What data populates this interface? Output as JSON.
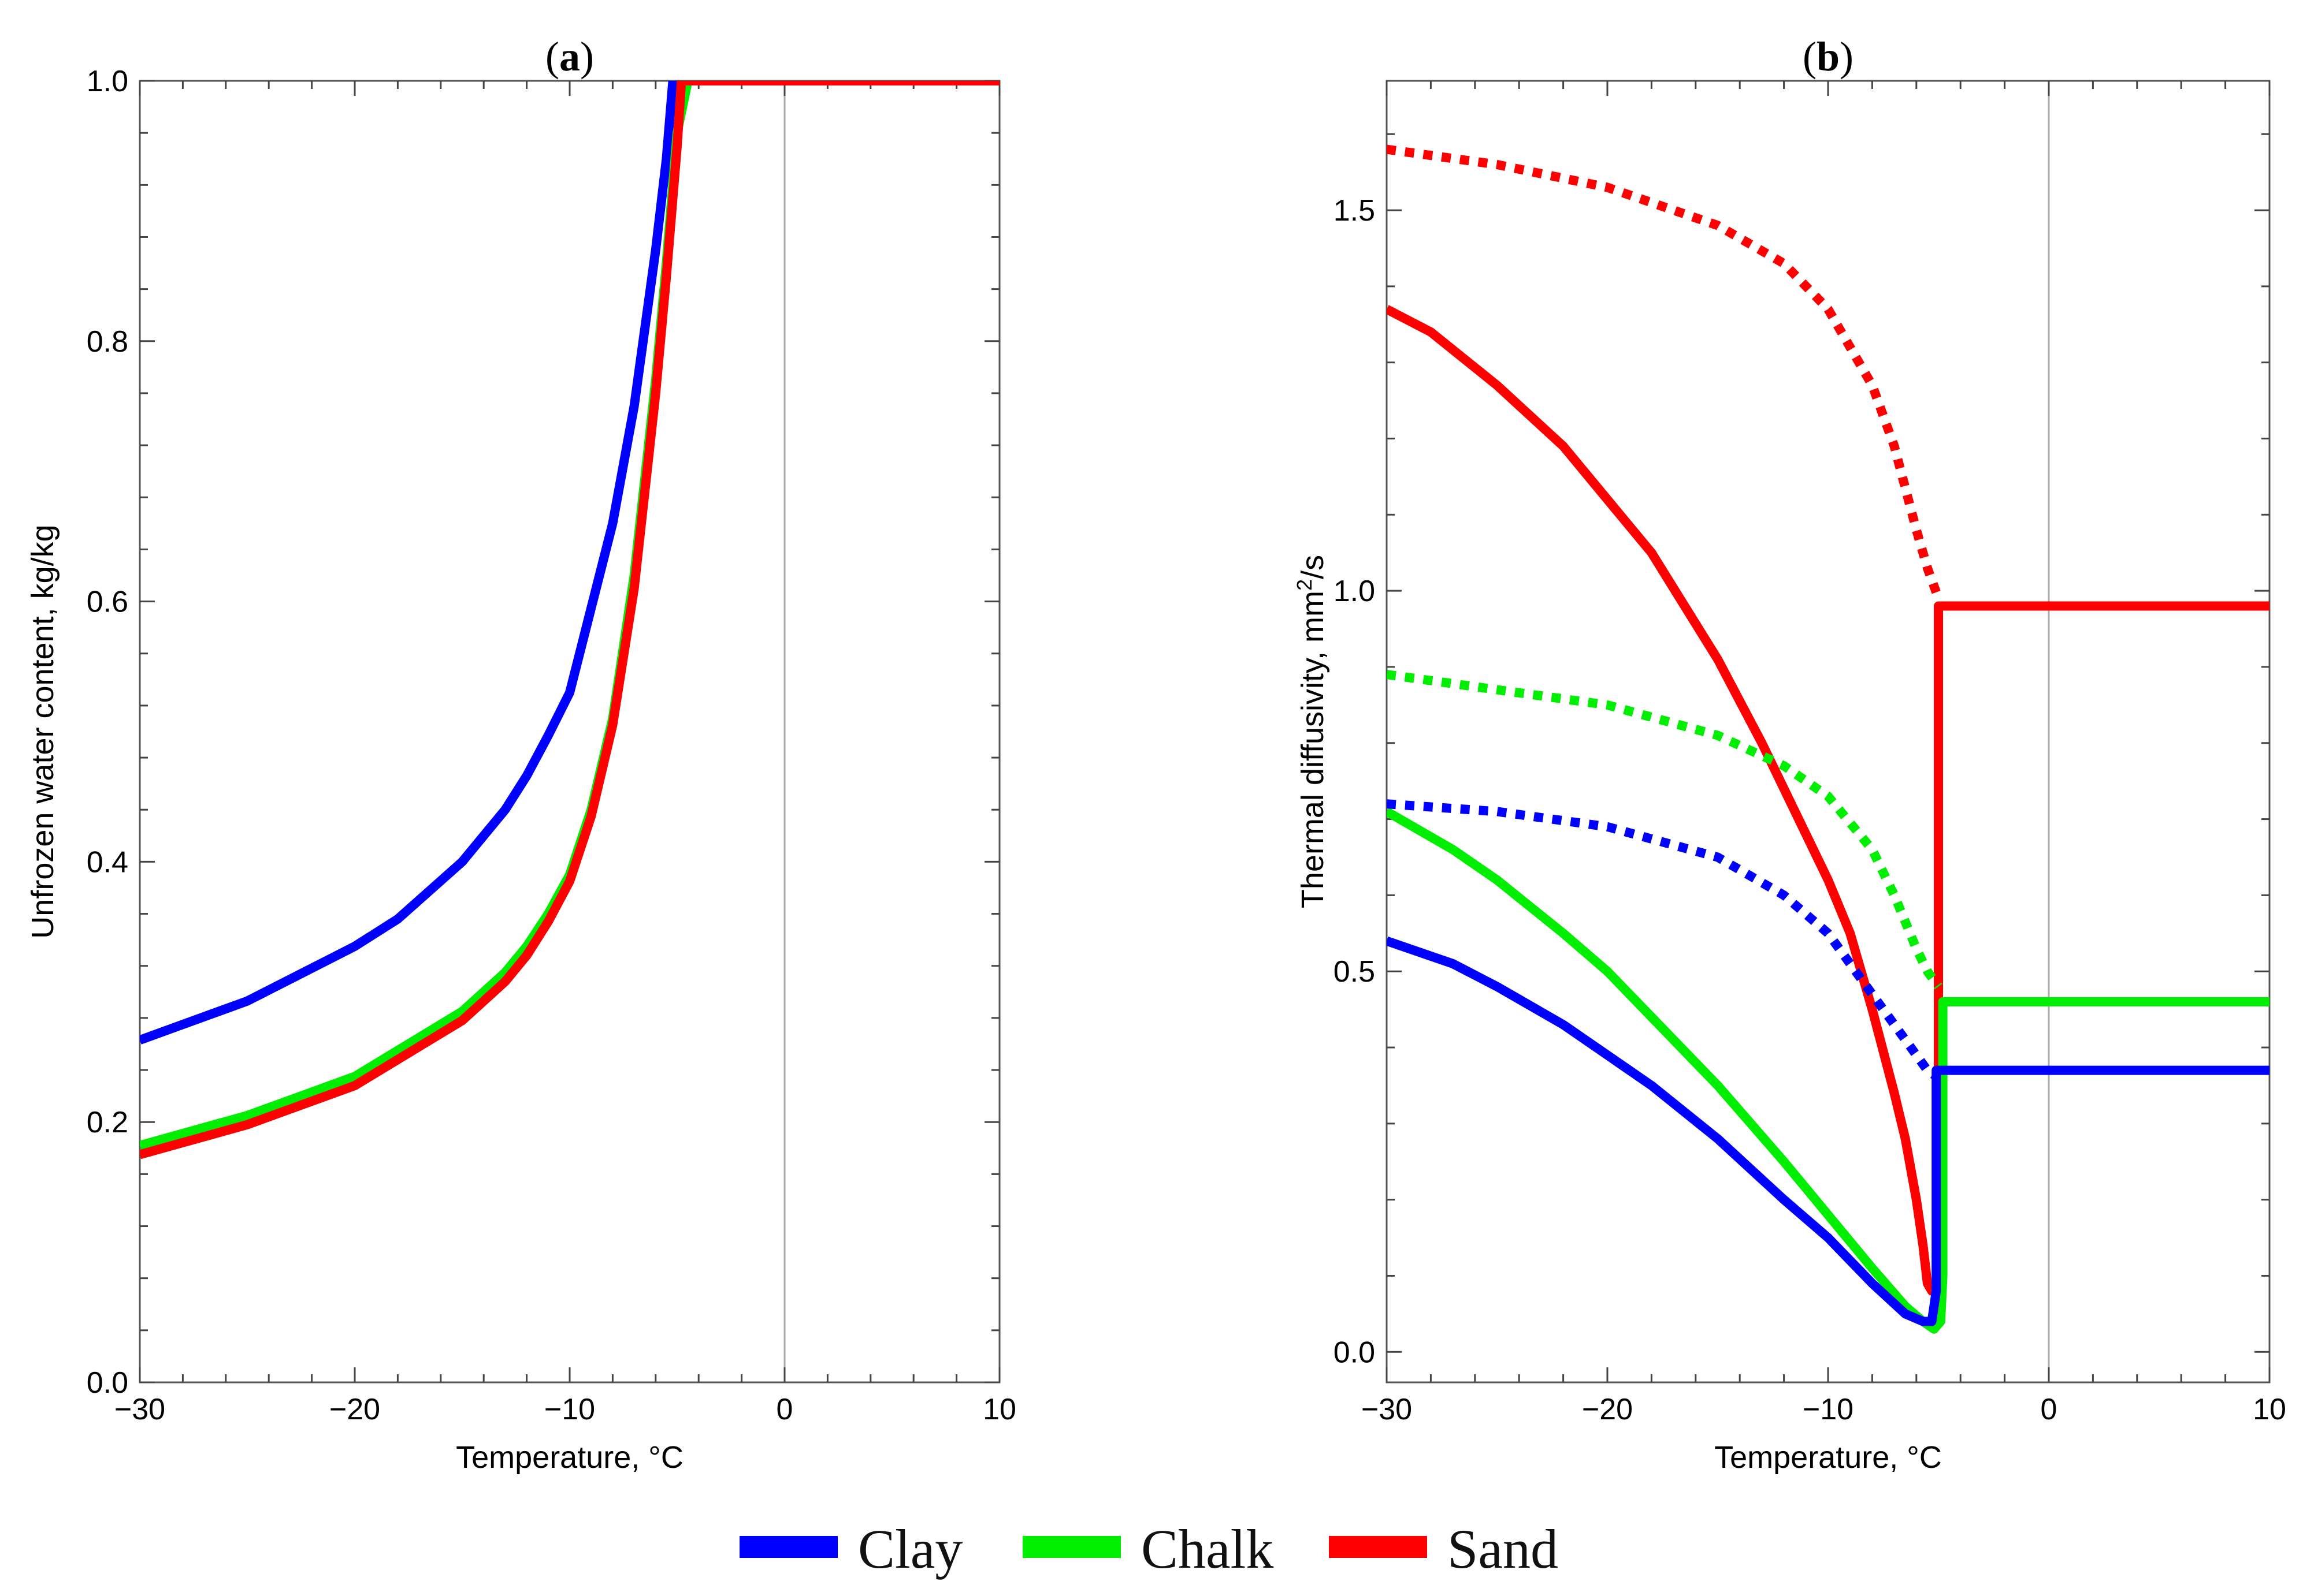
{
  "chart_data": [
    {
      "type": "line",
      "panel_letter": "a",
      "title": "(a)",
      "xlabel": "Temperature, °C",
      "ylabel": "Unfrozen water content, kg/kg",
      "xlim": [
        -30,
        10
      ],
      "ylim": [
        0,
        1.0
      ],
      "xticks": [
        -30,
        -20,
        -10,
        0,
        10
      ],
      "xtick_labels": [
        "−30",
        "−20",
        "−10",
        "0",
        "10"
      ],
      "yticks": [
        0,
        0.2,
        0.4,
        0.6,
        0.8,
        1.0
      ],
      "ytick_labels": [
        "0.0",
        "0.2",
        "0.4",
        "0.6",
        "0.8",
        "1.0"
      ],
      "series": [
        {
          "name": "Clay",
          "color": "#0000ff",
          "style": "solid",
          "x": [
            -30,
            -25,
            -20,
            -18,
            -15,
            -13,
            -12,
            -11,
            -10,
            -9,
            -8,
            -7,
            -6,
            -5.5,
            -5.2,
            -5,
            10
          ],
          "values": [
            0.263,
            0.293,
            0.335,
            0.356,
            0.4,
            0.44,
            0.466,
            0.497,
            0.53,
            0.595,
            0.66,
            0.75,
            0.87,
            0.94,
            1.0,
            1.0,
            1.0
          ]
        },
        {
          "name": "Chalk",
          "color": "#00ee00",
          "style": "solid",
          "x": [
            -30,
            -25,
            -20,
            -15,
            -13,
            -12,
            -11,
            -10,
            -9,
            -8,
            -7,
            -6,
            -5.5,
            -5,
            -4.5,
            10
          ],
          "values": [
            0.182,
            0.205,
            0.235,
            0.285,
            0.315,
            0.335,
            0.36,
            0.39,
            0.44,
            0.51,
            0.62,
            0.77,
            0.86,
            0.96,
            1.0,
            1.0
          ]
        },
        {
          "name": "Sand",
          "color": "#ff0000",
          "style": "solid",
          "x": [
            -30,
            -25,
            -20,
            -15,
            -13,
            -12,
            -11,
            -10,
            -9,
            -8,
            -7,
            -6,
            -5.5,
            -5,
            -4.8,
            10
          ],
          "values": [
            0.175,
            0.198,
            0.228,
            0.278,
            0.308,
            0.328,
            0.354,
            0.385,
            0.435,
            0.505,
            0.61,
            0.76,
            0.85,
            0.95,
            1.0,
            1.0
          ]
        }
      ]
    },
    {
      "type": "line",
      "panel_letter": "b",
      "title": "(b)",
      "xlabel": "Temperature, °C",
      "ylabel": "Thermal diffusivity, mm",
      "ylabel_sup": "2",
      "ylabel_suffix": "/s",
      "xlim": [
        -30,
        10
      ],
      "ylim": [
        -0.04,
        1.67
      ],
      "xticks": [
        -30,
        -20,
        -10,
        0,
        10
      ],
      "xtick_labels": [
        "−30",
        "−20",
        "−10",
        "0",
        "10"
      ],
      "yticks": [
        0,
        0.5,
        1.0,
        1.5
      ],
      "ytick_labels": [
        "0.0",
        "0.5",
        "1.0",
        "1.5"
      ],
      "series": [
        {
          "name": "Sand (dotted)",
          "color": "#ff0000",
          "style": "dotted",
          "x": [
            -30,
            -25,
            -20,
            -15,
            -12,
            -10,
            -8,
            -7,
            -6,
            -5.5,
            -5
          ],
          "values": [
            1.58,
            1.56,
            1.53,
            1.48,
            1.43,
            1.37,
            1.27,
            1.19,
            1.08,
            1.03,
            0.99
          ]
        },
        {
          "name": "Sand",
          "color": "#ff0000",
          "style": "solid",
          "x": [
            -30,
            -28,
            -25,
            -22,
            -20,
            -18,
            -15,
            -13,
            -12,
            -10,
            -9,
            -8,
            -7,
            -6.5,
            -6,
            -5.7,
            -5.5,
            -5.3,
            -5,
            -5,
            10
          ],
          "values": [
            1.37,
            1.34,
            1.27,
            1.19,
            1.12,
            1.05,
            0.91,
            0.8,
            0.74,
            0.62,
            0.55,
            0.45,
            0.34,
            0.28,
            0.2,
            0.14,
            0.09,
            0.08,
            0.09,
            0.98,
            0.98
          ]
        },
        {
          "name": "Chalk (dotted)",
          "color": "#00ee00",
          "style": "dotted",
          "x": [
            -30,
            -25,
            -20,
            -15,
            -12,
            -10,
            -8,
            -7,
            -6,
            -5.5,
            -5
          ],
          "values": [
            0.89,
            0.87,
            0.85,
            0.81,
            0.77,
            0.73,
            0.66,
            0.6,
            0.53,
            0.5,
            0.48
          ]
        },
        {
          "name": "Chalk",
          "color": "#00ee00",
          "style": "solid",
          "x": [
            -30,
            -27,
            -25,
            -22,
            -20,
            -18,
            -15,
            -12,
            -10,
            -8,
            -6.5,
            -5.7,
            -5.2,
            -4.9,
            -4.8,
            -4.8,
            10
          ],
          "values": [
            0.71,
            0.66,
            0.62,
            0.55,
            0.5,
            0.44,
            0.35,
            0.25,
            0.18,
            0.11,
            0.06,
            0.04,
            0.03,
            0.04,
            0.1,
            0.46,
            0.46
          ]
        },
        {
          "name": "Clay (dotted)",
          "color": "#0000ff",
          "style": "dotted",
          "x": [
            -30,
            -25,
            -20,
            -15,
            -12,
            -10,
            -8,
            -7,
            -6,
            -5.5,
            -5
          ],
          "values": [
            0.72,
            0.71,
            0.69,
            0.65,
            0.6,
            0.55,
            0.47,
            0.43,
            0.39,
            0.37,
            0.36
          ]
        },
        {
          "name": "Clay",
          "color": "#0000ff",
          "style": "solid",
          "x": [
            -30,
            -27,
            -25,
            -22,
            -20,
            -18,
            -15,
            -12,
            -10,
            -8,
            -6.5,
            -5.7,
            -5.3,
            -5.1,
            -5.1,
            10
          ],
          "values": [
            0.54,
            0.51,
            0.48,
            0.43,
            0.39,
            0.35,
            0.28,
            0.2,
            0.15,
            0.09,
            0.05,
            0.04,
            0.04,
            0.08,
            0.37,
            0.37
          ]
        }
      ]
    }
  ],
  "legend": {
    "position": "bottom-center",
    "entries": [
      {
        "label": "Clay",
        "color": "#0000ff"
      },
      {
        "label": "Chalk",
        "color": "#00ee00"
      },
      {
        "label": "Sand",
        "color": "#ff0000"
      }
    ]
  }
}
